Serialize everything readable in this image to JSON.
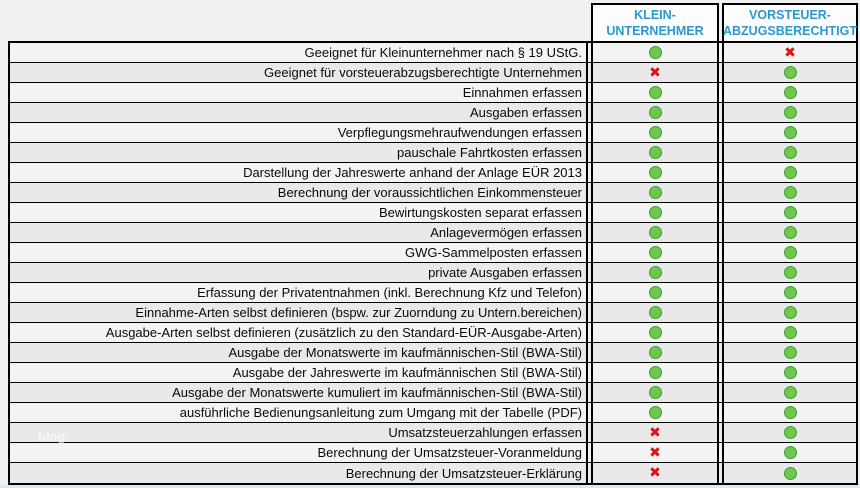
{
  "page": {
    "watermark": "blog"
  },
  "header": {
    "columns": [
      {
        "id": "kleinunternehmer",
        "line1": "KLEIN-",
        "line2": "UNTERNEHMER"
      },
      {
        "id": "vorsteuerabzugsberechtigt",
        "line1": "VORSTEUER-",
        "line2": "ABZUGSBERECHTIGT"
      }
    ]
  },
  "symbols": {
    "yes": "green-dot",
    "no": "red-cross",
    "cross_glyph": "✖"
  },
  "colors": {
    "header_text": "#2b98ce",
    "yes_fill": "#6fc84b",
    "yes_border": "#3f9c3c",
    "no": "#e01117",
    "row_light": "#f3f3f3",
    "row_dark": "#e9e9e9",
    "grid_border": "#000000"
  },
  "rows": [
    {
      "label": "Geeignet für Kleinunternehmer nach § 19 UStG.",
      "kleinunternehmer": "yes",
      "vorsteuerabzugsberechtigt": "no"
    },
    {
      "label": "Geeignet für vorsteuerabzugsberechtigte Unternehmen",
      "kleinunternehmer": "no",
      "vorsteuerabzugsberechtigt": "yes"
    },
    {
      "label": "Einnahmen erfassen",
      "kleinunternehmer": "yes",
      "vorsteuerabzugsberechtigt": "yes"
    },
    {
      "label": "Ausgaben erfassen",
      "kleinunternehmer": "yes",
      "vorsteuerabzugsberechtigt": "yes"
    },
    {
      "label": "Verpflegungsmehraufwendungen erfassen",
      "kleinunternehmer": "yes",
      "vorsteuerabzugsberechtigt": "yes"
    },
    {
      "label": "pauschale Fahrtkosten erfassen",
      "kleinunternehmer": "yes",
      "vorsteuerabzugsberechtigt": "yes"
    },
    {
      "label": "Darstellung der Jahreswerte anhand der Anlage EÜR 2013",
      "kleinunternehmer": "yes",
      "vorsteuerabzugsberechtigt": "yes"
    },
    {
      "label": "Berechnung der voraussichtlichen Einkommensteuer",
      "kleinunternehmer": "yes",
      "vorsteuerabzugsberechtigt": "yes"
    },
    {
      "label": "Bewirtungskosten separat erfassen",
      "kleinunternehmer": "yes",
      "vorsteuerabzugsberechtigt": "yes"
    },
    {
      "label": "Anlagevermögen erfassen",
      "kleinunternehmer": "yes",
      "vorsteuerabzugsberechtigt": "yes"
    },
    {
      "label": "GWG-Sammelposten erfassen",
      "kleinunternehmer": "yes",
      "vorsteuerabzugsberechtigt": "yes"
    },
    {
      "label": "private Ausgaben erfassen",
      "kleinunternehmer": "yes",
      "vorsteuerabzugsberechtigt": "yes"
    },
    {
      "label": "Erfassung der Privatentnahmen (inkl. Berechnung Kfz und Telefon)",
      "kleinunternehmer": "yes",
      "vorsteuerabzugsberechtigt": "yes"
    },
    {
      "label": "Einnahme-Arten selbst definieren (bspw. zur Zuorndung zu Untern.bereichen)",
      "kleinunternehmer": "yes",
      "vorsteuerabzugsberechtigt": "yes"
    },
    {
      "label": "Ausgabe-Arten selbst definieren (zusätzlich zu den Standard-EÜR-Ausgabe-Arten)",
      "kleinunternehmer": "yes",
      "vorsteuerabzugsberechtigt": "yes"
    },
    {
      "label": "Ausgabe der Monatswerte im kaufmännischen-Stil (BWA-Stil)",
      "kleinunternehmer": "yes",
      "vorsteuerabzugsberechtigt": "yes"
    },
    {
      "label": "Ausgabe der Jahreswerte im kaufmännischen Stil (BWA-Stil)",
      "kleinunternehmer": "yes",
      "vorsteuerabzugsberechtigt": "yes"
    },
    {
      "label": "Ausgabe der Monatswerte kumuliert im kaufmännischen-Stil (BWA-Stil)",
      "kleinunternehmer": "yes",
      "vorsteuerabzugsberechtigt": "yes"
    },
    {
      "label": "ausführliche Bedienungsanleitung zum Umgang mit der Tabelle (PDF)",
      "kleinunternehmer": "yes",
      "vorsteuerabzugsberechtigt": "yes"
    },
    {
      "label": "Umsatzsteuerzahlungen erfassen",
      "kleinunternehmer": "no",
      "vorsteuerabzugsberechtigt": "yes"
    },
    {
      "label": "Berechnung der Umsatzsteuer-Voranmeldung",
      "kleinunternehmer": "no",
      "vorsteuerabzugsberechtigt": "yes"
    },
    {
      "label": "Berechnung der Umsatzsteuer-Erklärung",
      "kleinunternehmer": "no",
      "vorsteuerabzugsberechtigt": "yes"
    }
  ]
}
